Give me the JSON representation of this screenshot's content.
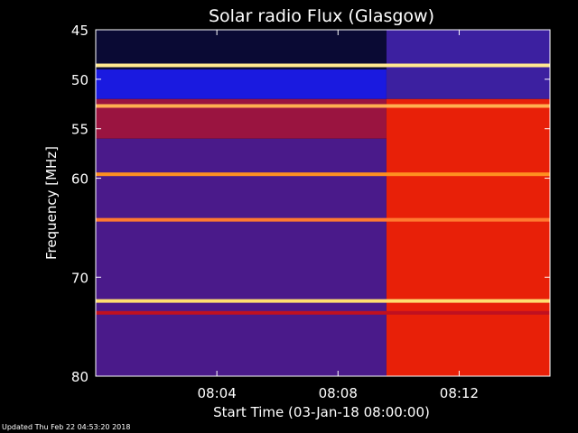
{
  "chart_data": {
    "type": "heatmap",
    "title": "Solar radio Flux (Glasgow)",
    "xlabel": "Start Time (03-Jan-18 08:00:00)",
    "ylabel": "Frequency [MHz]",
    "x_unit": "minutes after 08:00:00",
    "xlim": [
      0,
      15
    ],
    "ylim": [
      45,
      80
    ],
    "y_axis_inverted": true,
    "x_ticks": [
      {
        "value": 4,
        "label": "08:04"
      },
      {
        "value": 8,
        "label": "08:08"
      },
      {
        "value": 12,
        "label": "08:12"
      }
    ],
    "y_ticks": [
      {
        "value": 45,
        "label": "45"
      },
      {
        "value": 50,
        "label": "50"
      },
      {
        "value": 55,
        "label": "55"
      },
      {
        "value": 60,
        "label": "60"
      },
      {
        "value": 70,
        "label": "70"
      },
      {
        "value": 80,
        "label": "80"
      }
    ],
    "regions": [
      {
        "x_from": 0,
        "x_to": 9.6,
        "f_from": 45,
        "f_to": 49.0,
        "level": "lowest",
        "color": "#0a0a34"
      },
      {
        "x_from": 0,
        "x_to": 9.6,
        "f_from": 49.0,
        "f_to": 52.0,
        "level": "low",
        "color": "#1a1ae0"
      },
      {
        "x_from": 0,
        "x_to": 9.6,
        "f_from": 52.0,
        "f_to": 56.0,
        "level": "medium",
        "color": "#9a1440"
      },
      {
        "x_from": 0,
        "x_to": 9.6,
        "f_from": 56.0,
        "f_to": 80,
        "level": "medium",
        "color": "#4a1a8a"
      },
      {
        "x_from": 9.6,
        "x_to": 15,
        "f_from": 45,
        "f_to": 52.0,
        "level": "low",
        "color": "#3c20a0"
      },
      {
        "x_from": 9.6,
        "x_to": 15,
        "f_from": 52.0,
        "f_to": 80,
        "level": "high",
        "color": "#e82008"
      }
    ],
    "bands": [
      {
        "freq": 48.6,
        "level": "saturated",
        "color": "#ffe890"
      },
      {
        "freq": 52.7,
        "level": "high",
        "color": "#ffb050"
      },
      {
        "freq": 59.6,
        "level": "high",
        "color": "#ff9020"
      },
      {
        "freq": 64.2,
        "level": "high",
        "color": "#ff7a30"
      },
      {
        "freq": 72.4,
        "level": "saturated",
        "color": "#ffe070"
      },
      {
        "freq": 73.6,
        "level": "medium",
        "color": "#c01020"
      }
    ],
    "colors": {
      "background": "#000000",
      "frame": "#ffffff"
    }
  },
  "footer": {
    "updated": "Updated Thu Feb 22 04:53:20 2018"
  }
}
